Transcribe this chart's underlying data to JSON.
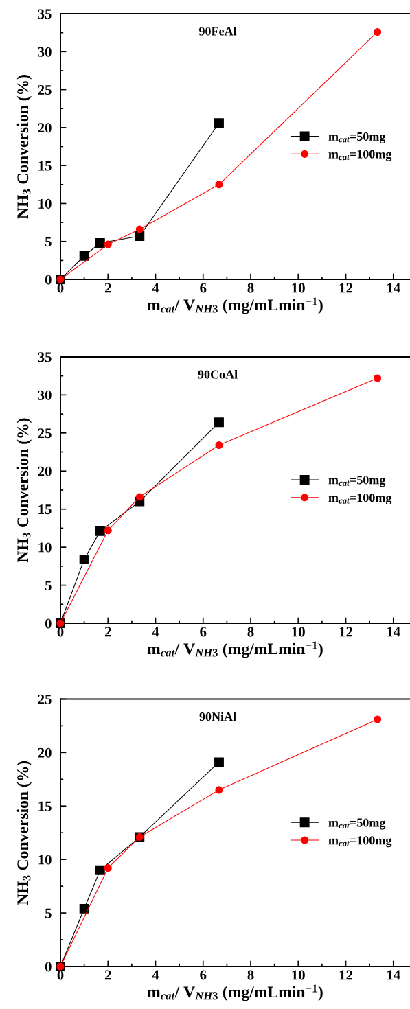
{
  "chart_data": [
    {
      "type": "line",
      "title": "90FeAl",
      "xlabel": "m$_{cat}$/ V$_{NH3}$ (mg/mLmin$^{−1}$)",
      "ylabel": "NH$_{3}$ Conversion (%)",
      "xlim": [
        0,
        14.7
      ],
      "xticks": [
        0,
        2,
        4,
        6,
        8,
        10,
        12,
        14
      ],
      "ylim": [
        0,
        35
      ],
      "yticks": [
        0,
        5,
        10,
        15,
        20,
        25,
        30,
        35
      ],
      "legend": "right",
      "grid": false,
      "series": [
        {
          "name": "m$_{cat}$=50mg",
          "color": "#000000",
          "marker": "square",
          "x": [
            0,
            1,
            1.67,
            3.33,
            6.67
          ],
          "values": [
            0,
            3.1,
            4.8,
            5.7,
            20.6
          ]
        },
        {
          "name": "m$_{cat}$=100mg",
          "color": "#ff0000",
          "marker": "circle",
          "x": [
            0,
            2,
            3.33,
            6.67,
            13.33
          ],
          "values": [
            0,
            4.6,
            6.6,
            12.5,
            32.6
          ]
        }
      ]
    },
    {
      "type": "line",
      "title": "90CoAl",
      "xlabel": "m$_{cat}$/ V$_{NH3}$ (mg/mLmin$^{−1}$)",
      "ylabel": "NH$_{3}$ Conversion (%)",
      "xlim": [
        0,
        14.7
      ],
      "xticks": [
        0,
        2,
        4,
        6,
        8,
        10,
        12,
        14
      ],
      "ylim": [
        0,
        35
      ],
      "yticks": [
        0,
        5,
        10,
        15,
        20,
        25,
        30,
        35
      ],
      "legend": "right",
      "grid": false,
      "series": [
        {
          "name": "m$_{cat}$=50mg",
          "color": "#000000",
          "marker": "square",
          "x": [
            0,
            1,
            1.67,
            3.33,
            6.67
          ],
          "values": [
            0,
            8.4,
            12.1,
            16.0,
            26.4
          ]
        },
        {
          "name": "m$_{cat}$=100mg",
          "color": "#ff0000",
          "marker": "circle",
          "x": [
            0,
            2,
            3.33,
            6.67,
            13.33
          ],
          "values": [
            0,
            12.2,
            16.6,
            23.4,
            32.2
          ]
        }
      ]
    },
    {
      "type": "line",
      "title": "90NiAl",
      "xlabel": "m$_{cat}$/ V$_{NH3}$ (mg/mLmin$^{−1}$)",
      "ylabel": "NH$_{3}$ Conversion (%)",
      "xlim": [
        0,
        14.7
      ],
      "xticks": [
        0,
        2,
        4,
        6,
        8,
        10,
        12,
        14
      ],
      "ylim": [
        0,
        25
      ],
      "yticks": [
        0,
        5,
        10,
        15,
        20,
        25
      ],
      "legend": "right",
      "grid": false,
      "series": [
        {
          "name": "m$_{cat}$=50mg",
          "color": "#000000",
          "marker": "square",
          "x": [
            0,
            1,
            1.67,
            3.33,
            6.67
          ],
          "values": [
            0,
            5.4,
            9.0,
            12.1,
            19.1
          ]
        },
        {
          "name": "m$_{cat}$=100mg",
          "color": "#ff0000",
          "marker": "circle",
          "x": [
            0,
            2,
            3.33,
            6.67,
            13.33
          ],
          "values": [
            0,
            9.2,
            12.1,
            16.5,
            23.1
          ]
        }
      ]
    }
  ]
}
